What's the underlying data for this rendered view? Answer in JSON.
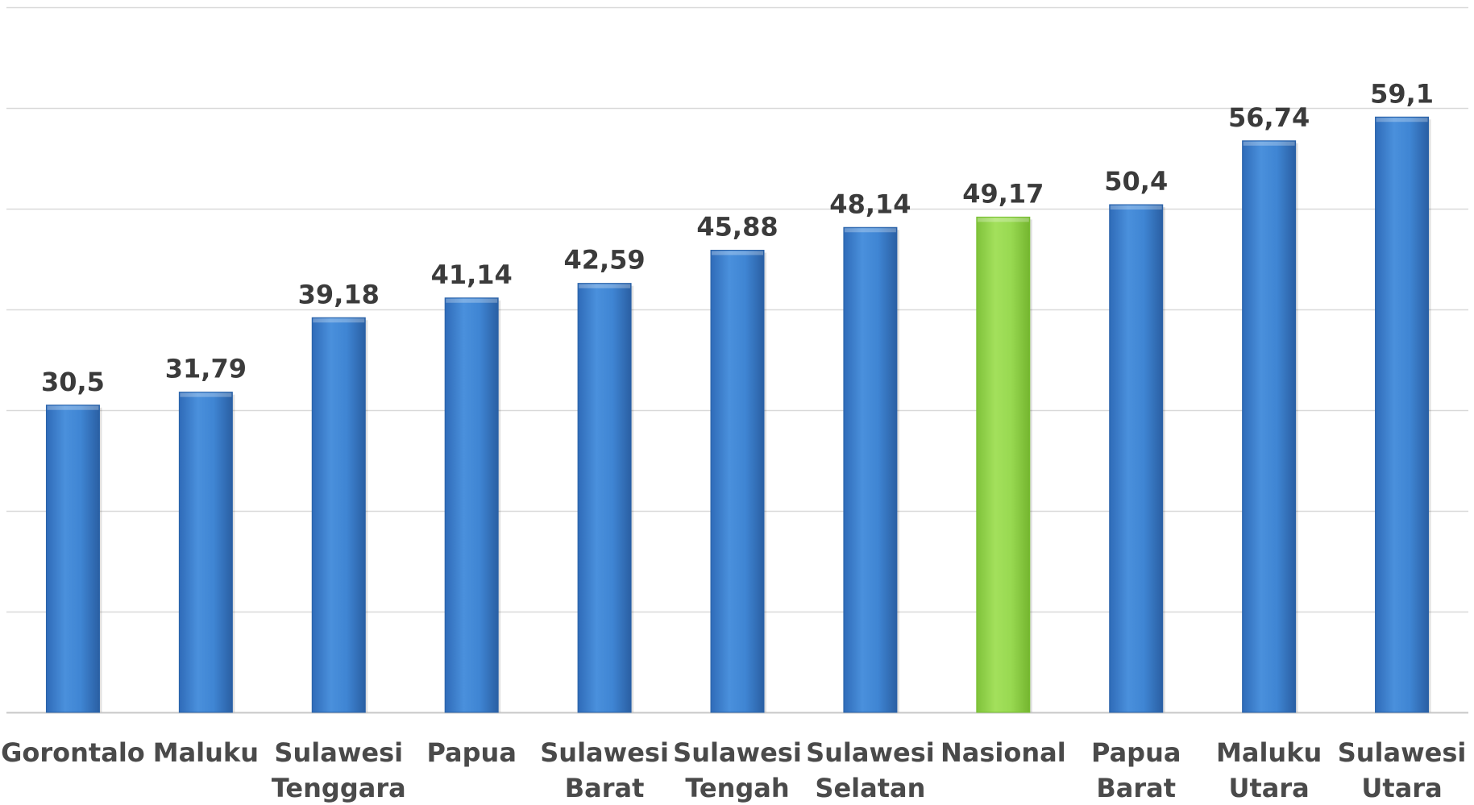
{
  "chart_data": {
    "type": "bar",
    "categories": [
      [
        "Gorontalo"
      ],
      [
        "Maluku"
      ],
      [
        "Sulawesi",
        "Tenggara"
      ],
      [
        "Papua"
      ],
      [
        "Sulawesi",
        "Barat"
      ],
      [
        "Sulawesi",
        "Tengah"
      ],
      [
        "Sulawesi",
        "Selatan"
      ],
      [
        "Nasional"
      ],
      [
        "Papua",
        "Barat"
      ],
      [
        "Maluku",
        "Utara"
      ],
      [
        "Sulawesi",
        "Utara"
      ]
    ],
    "values": [
      30.5,
      31.79,
      39.18,
      41.14,
      42.59,
      45.88,
      48.14,
      49.17,
      50.4,
      56.74,
      59.1
    ],
    "value_labels": [
      "30,5",
      "31,79",
      "39,18",
      "41,14",
      "42,59",
      "45,88",
      "48,14",
      "49,17",
      "50,4",
      "56,74",
      "59,1"
    ],
    "highlight_category": "Nasional",
    "title": "",
    "xlabel": "",
    "ylabel": "",
    "ylim": [
      0,
      70
    ],
    "grid": true,
    "legend": "none",
    "colors": {
      "bar": "#3b7fce",
      "bar_dark": "#2a62a8",
      "bar_highlight": "#96d84e",
      "bar_highlight_dark": "#78c032",
      "grid": "#d9d9d9",
      "baseline": "#c8c8c8"
    }
  }
}
